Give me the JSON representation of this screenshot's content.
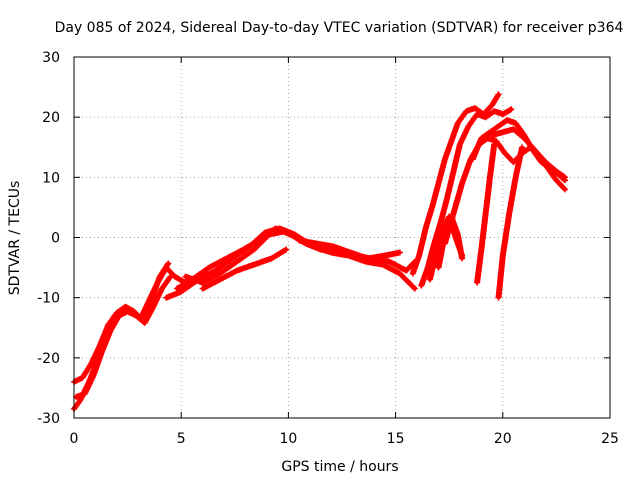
{
  "chart_data": {
    "type": "scatter",
    "title": "Day 085 of 2024, Sidereal Day-to-day VTEC variation (SDTVAR) for receiver p364",
    "xlabel": "GPS time / hours",
    "ylabel": "SDTVAR / TECUs",
    "xlim": [
      0,
      25
    ],
    "ylim": [
      -30,
      30
    ],
    "xticks": [
      0,
      5,
      10,
      15,
      20,
      25
    ],
    "yticks": [
      -30,
      -20,
      -10,
      0,
      10,
      20,
      30
    ],
    "grid": true,
    "marker": "+",
    "color": "#ff0000",
    "series": [
      {
        "name": "track-1",
        "x": [
          0,
          0.3,
          0.7,
          1.1,
          1.5,
          1.9,
          2.3,
          2.7,
          3.1,
          3.5,
          3.9,
          4.3,
          4.7,
          5.2
        ],
        "y": [
          -28.5,
          -27,
          -24,
          -20.5,
          -16.5,
          -13.5,
          -11.8,
          -12.5,
          -13.5,
          -10.5,
          -7.5,
          -5,
          -6.5,
          -7.5
        ]
      },
      {
        "name": "track-2",
        "x": [
          0,
          0.4,
          0.8,
          1.2,
          1.6,
          2.0,
          2.4,
          2.8,
          3.2,
          3.6,
          4.0,
          4.4
        ],
        "y": [
          -24,
          -23.3,
          -21,
          -18,
          -14.5,
          -12.5,
          -11.5,
          -12.3,
          -13.8,
          -10.5,
          -6.5,
          -4.3
        ]
      },
      {
        "name": "track-3",
        "x": [
          0.1,
          0.5,
          0.9,
          1.3,
          1.7,
          2.1,
          2.5,
          2.9,
          3.3,
          3.7,
          4.1,
          4.5
        ],
        "y": [
          -26.5,
          -26,
          -23,
          -19,
          -15.5,
          -13,
          -12.3,
          -13,
          -14.2,
          -11.5,
          -8.5,
          -6.5
        ]
      },
      {
        "name": "track-4",
        "x": [
          4.3,
          5.0,
          5.8,
          6.6,
          7.4,
          8.2,
          8.9,
          9.6,
          10.3,
          10.9
        ],
        "y": [
          -10,
          -9,
          -7,
          -5.5,
          -3.5,
          -1.5,
          0.8,
          1.5,
          0.5,
          -1
        ]
      },
      {
        "name": "track-5",
        "x": [
          4.8,
          5.5,
          6.3,
          7.1,
          7.9,
          8.6,
          9.4,
          10.1,
          10.8,
          11.5,
          12.3,
          13.1,
          13.9,
          14.7,
          15.5,
          15.9
        ],
        "y": [
          -8.5,
          -7,
          -5,
          -3.5,
          -2,
          -0.5,
          1.5,
          0.5,
          -1,
          -2,
          -2.5,
          -3,
          -3.5,
          -4,
          -5.5,
          -4
        ]
      },
      {
        "name": "track-6",
        "x": [
          5.2,
          6.0,
          6.8,
          7.6,
          8.4,
          9.1,
          9.8,
          10.5,
          11.2,
          12.0,
          12.8,
          13.6,
          14.4,
          15.2,
          15.9
        ],
        "y": [
          -6.5,
          -7.5,
          -6,
          -4,
          -2,
          0.5,
          1,
          0,
          -1.5,
          -2.5,
          -3,
          -4,
          -4.5,
          -6,
          -8.5
        ]
      },
      {
        "name": "track-7",
        "x": [
          6.0,
          6.8,
          7.6,
          8.4,
          9.2,
          9.9
        ],
        "y": [
          -8.5,
          -7,
          -5.5,
          -4.5,
          -3.5,
          -2
        ]
      },
      {
        "name": "track-8",
        "x": [
          10.5,
          11.3,
          12.1,
          12.9,
          13.7,
          14.5,
          15.2
        ],
        "y": [
          -0.5,
          -1,
          -1.5,
          -2.5,
          -3.5,
          -3,
          -2.5
        ]
      },
      {
        "name": "track-9",
        "x": [
          15.8,
          16.1,
          16.4,
          16.7,
          17.0,
          17.3,
          17.6,
          17.9,
          18.3,
          18.7,
          19.1,
          19.5,
          19.8
        ],
        "y": [
          -6,
          -3,
          1.5,
          5,
          9,
          13,
          16,
          19,
          21,
          21.5,
          20.5,
          22,
          23.8
        ]
      },
      {
        "name": "track-10",
        "x": [
          16.2,
          16.5,
          16.8,
          17.1,
          17.4,
          17.7,
          18.0,
          18.4,
          18.8,
          19.2,
          19.6,
          20.0,
          20.4
        ],
        "y": [
          -8,
          -5,
          -1,
          2.5,
          6.5,
          11,
          15.5,
          18.5,
          20.5,
          20,
          21,
          20.5,
          21.3
        ]
      },
      {
        "name": "track-11",
        "x": [
          16.6,
          16.9,
          17.2,
          17.5,
          17.8,
          18.1
        ],
        "y": [
          -7,
          -2.5,
          1.5,
          3.5,
          0,
          -3
        ]
      },
      {
        "name": "track-12",
        "x": [
          17.0,
          17.3,
          17.6,
          17.9,
          18.1
        ],
        "y": [
          -5,
          0.5,
          3.5,
          0.5,
          -3.5
        ]
      },
      {
        "name": "track-13",
        "x": [
          17.3,
          17.7,
          18.1,
          18.5,
          18.9,
          19.3,
          19.7,
          20.1,
          20.5,
          20.9,
          21.3,
          21.7,
          22.1,
          22.5,
          22.9
        ],
        "y": [
          -1,
          4,
          9,
          13,
          15.5,
          16.5,
          16,
          14,
          12.5,
          14,
          15,
          13.5,
          11.5,
          9.5,
          8
        ]
      },
      {
        "name": "track-14",
        "x": [
          18.6,
          19.0,
          19.4,
          19.8,
          20.2,
          20.6,
          21.0,
          21.4,
          21.8,
          22.2,
          22.6,
          22.9
        ],
        "y": [
          13,
          16.5,
          17.5,
          18.5,
          19.5,
          19,
          17,
          14.5,
          12.5,
          11.5,
          10.5,
          9.5
        ]
      },
      {
        "name": "track-15",
        "x": [
          18.8,
          19.0,
          19.2,
          19.4,
          19.6
        ],
        "y": [
          -7.5,
          -2,
          4,
          10,
          15.5
        ]
      },
      {
        "name": "track-16",
        "x": [
          19.8,
          20.0,
          20.3,
          20.6,
          20.9
        ],
        "y": [
          -10,
          -3,
          4,
          10,
          15
        ]
      },
      {
        "name": "track-17",
        "x": [
          19.5,
          20.0,
          20.5,
          21.0,
          21.5,
          22.0,
          22.5,
          22.9
        ],
        "y": [
          17,
          17.5,
          18,
          16.5,
          14.5,
          12.5,
          11,
          10
        ]
      }
    ]
  }
}
